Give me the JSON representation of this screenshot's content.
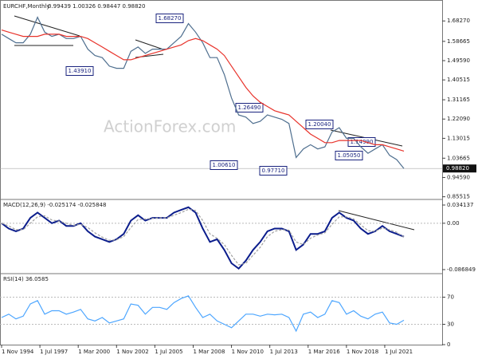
{
  "chart_data": [
    {
      "type": "line",
      "title": "EURCHF,Monthly",
      "subtitle": "0.99439 1.00326 0.98447 0.98820",
      "watermark": "ActionForex.com",
      "x": [
        "1994-11",
        "1995-05",
        "1995-11",
        "1996-05",
        "1996-11",
        "1997-05",
        "1997-11",
        "1998-05",
        "1998-11",
        "1999-05",
        "1999-11",
        "2000-05",
        "2000-11",
        "2001-05",
        "2001-11",
        "2002-05",
        "2002-11",
        "2003-05",
        "2003-11",
        "2004-05",
        "2004-11",
        "2005-05",
        "2005-11",
        "2006-05",
        "2006-11",
        "2007-05",
        "2007-11",
        "2008-05",
        "2008-11",
        "2009-05",
        "2009-11",
        "2010-05",
        "2010-11",
        "2011-05",
        "2011-11",
        "2012-05",
        "2012-11",
        "2013-05",
        "2013-11",
        "2014-05",
        "2014-11",
        "2015-05",
        "2015-11",
        "2016-05",
        "2016-11",
        "2017-05",
        "2017-11",
        "2018-05",
        "2018-11",
        "2019-05",
        "2019-11",
        "2020-05",
        "2020-11",
        "2021-05",
        "2021-11",
        "2022-05",
        "2022-11"
      ],
      "xticks": [
        {
          "value": "1994-11",
          "label": "1 Nov 1994"
        },
        {
          "value": "1997-07",
          "label": "1 Jul 1997"
        },
        {
          "value": "2000-03",
          "label": "1 Mar 2000"
        },
        {
          "value": "2002-11",
          "label": "1 Nov 2002"
        },
        {
          "value": "2005-07",
          "label": "1 Jul 2005"
        },
        {
          "value": "2008-03",
          "label": "1 Mar 2008"
        },
        {
          "value": "2010-11",
          "label": "1 Nov 2010"
        },
        {
          "value": "2013-07",
          "label": "1 Jul 2013"
        },
        {
          "value": "2016-03",
          "label": "1 Mar 2016"
        },
        {
          "value": "2018-11",
          "label": "1 Nov 2018"
        },
        {
          "value": "2021-07",
          "label": "1 Jul 2021"
        }
      ],
      "series": [
        {
          "color": "#4f6f8f",
          "values": [
            1.62,
            1.6,
            1.58,
            1.58,
            1.62,
            1.7,
            1.63,
            1.61,
            1.62,
            1.6,
            1.6,
            1.61,
            1.55,
            1.52,
            1.51,
            1.47,
            1.46,
            1.46,
            1.54,
            1.56,
            1.53,
            1.55,
            1.55,
            1.55,
            1.58,
            1.61,
            1.67,
            1.63,
            1.58,
            1.51,
            1.51,
            1.43,
            1.32,
            1.24,
            1.23,
            1.2,
            1.21,
            1.24,
            1.23,
            1.22,
            1.2,
            1.04,
            1.08,
            1.1,
            1.08,
            1.09,
            1.16,
            1.18,
            1.13,
            1.13,
            1.09,
            1.06,
            1.08,
            1.1,
            1.05,
            1.03,
            0.9882
          ]
        },
        {
          "color": "#e8332b",
          "values": [
            1.64,
            1.63,
            1.62,
            1.61,
            1.61,
            1.61,
            1.62,
            1.62,
            1.62,
            1.61,
            1.61,
            1.61,
            1.6,
            1.58,
            1.56,
            1.54,
            1.52,
            1.5,
            1.5,
            1.51,
            1.52,
            1.53,
            1.54,
            1.55,
            1.56,
            1.57,
            1.59,
            1.6,
            1.59,
            1.57,
            1.55,
            1.52,
            1.47,
            1.42,
            1.37,
            1.33,
            1.3,
            1.28,
            1.26,
            1.25,
            1.24,
            1.21,
            1.18,
            1.15,
            1.13,
            1.11,
            1.11,
            1.12,
            1.12,
            1.12,
            1.12,
            1.11,
            1.1,
            1.1,
            1.09,
            1.08,
            1.07
          ]
        }
      ],
      "ylim": [
        0.85,
        1.77
      ],
      "yticks": [
        {
          "value": 1.6827,
          "label": "1.68270"
        },
        {
          "value": 1.58665,
          "label": "1.58665"
        },
        {
          "value": 1.4959,
          "label": "1.49590"
        },
        {
          "value": 1.40515,
          "label": "1.40515"
        },
        {
          "value": 1.31165,
          "label": "1.31165"
        },
        {
          "value": 1.2209,
          "label": "1.22090"
        },
        {
          "value": 1.13015,
          "label": "1.13015"
        },
        {
          "value": 1.03665,
          "label": "1.03665"
        },
        {
          "value": 0.9459,
          "label": "0.94590"
        },
        {
          "value": 0.85515,
          "label": "0.85515"
        }
      ],
      "last_price": {
        "value": 0.9882,
        "label": "0.98820"
      },
      "annotations": [
        "1.68270",
        "1.43910",
        "1.26490",
        "1.00610",
        "0.97710",
        "1.20040",
        "1.14990",
        "1.05050"
      ]
    },
    {
      "type": "line",
      "title": "MACD(12,26,9) -0.025174 -0.025848",
      "series": [
        {
          "color": "#0b1d8c",
          "values": [
            0.0,
            -0.01,
            -0.015,
            -0.01,
            0.01,
            0.02,
            0.01,
            0.0,
            0.005,
            -0.005,
            -0.005,
            0.0,
            -0.015,
            -0.025,
            -0.03,
            -0.035,
            -0.03,
            -0.02,
            0.005,
            0.015,
            0.005,
            0.01,
            0.01,
            0.01,
            0.02,
            0.025,
            0.03,
            0.02,
            -0.01,
            -0.035,
            -0.03,
            -0.05,
            -0.075,
            -0.085,
            -0.07,
            -0.05,
            -0.035,
            -0.015,
            -0.01,
            -0.01,
            -0.015,
            -0.05,
            -0.04,
            -0.02,
            -0.02,
            -0.015,
            0.01,
            0.02,
            0.01,
            0.005,
            -0.01,
            -0.02,
            -0.015,
            -0.005,
            -0.015,
            -0.02,
            -0.025174
          ]
        },
        {
          "color": "#a0a0a0",
          "values": [
            0.0,
            -0.005,
            -0.012,
            -0.012,
            0.0,
            0.012,
            0.014,
            0.006,
            0.004,
            0.0,
            -0.004,
            -0.002,
            -0.008,
            -0.018,
            -0.026,
            -0.032,
            -0.031,
            -0.025,
            -0.008,
            0.007,
            0.008,
            0.009,
            0.01,
            0.01,
            0.015,
            0.02,
            0.026,
            0.024,
            0.005,
            -0.02,
            -0.028,
            -0.04,
            -0.06,
            -0.078,
            -0.075,
            -0.06,
            -0.045,
            -0.025,
            -0.015,
            -0.012,
            -0.013,
            -0.035,
            -0.04,
            -0.028,
            -0.022,
            -0.018,
            -0.002,
            0.012,
            0.012,
            0.008,
            -0.003,
            -0.014,
            -0.015,
            -0.009,
            -0.012,
            -0.017,
            -0.025848
          ]
        }
      ],
      "ylim": [
        -0.0914,
        0.0416
      ],
      "yticks": [
        {
          "value": 0.034137,
          "label": "0.034137"
        },
        {
          "value": 0,
          "label": "0.00"
        },
        {
          "value": -0.086849,
          "label": "-0.086849"
        }
      ],
      "levels": [
        0
      ]
    },
    {
      "type": "line",
      "title": "RSI(14) 36.0585",
      "series": [
        {
          "color": "#4da6ff",
          "values": [
            40,
            45,
            38,
            42,
            60,
            65,
            45,
            50,
            50,
            45,
            48,
            52,
            38,
            35,
            40,
            32,
            35,
            38,
            60,
            58,
            45,
            55,
            55,
            52,
            62,
            68,
            72,
            55,
            40,
            45,
            35,
            30,
            25,
            35,
            45,
            45,
            42,
            45,
            44,
            45,
            40,
            20,
            45,
            48,
            40,
            45,
            65,
            62,
            45,
            50,
            42,
            38,
            45,
            48,
            32,
            30,
            36.0585
          ]
        }
      ],
      "ylim": [
        0,
        100
      ],
      "yticks": [
        70,
        30,
        0
      ],
      "levels": [
        70,
        30
      ]
    }
  ]
}
